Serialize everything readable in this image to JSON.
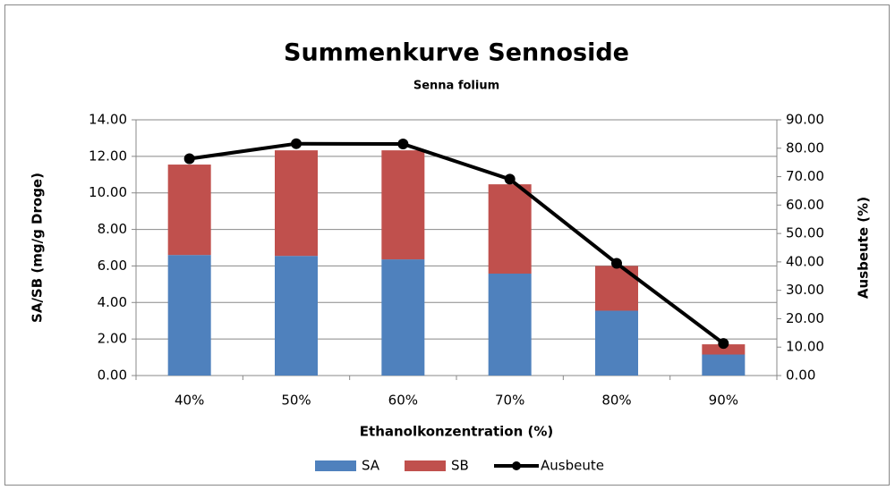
{
  "chart_data": {
    "type": "bar-line",
    "title": "Summenkurve Sennoside",
    "subtitle": "Senna folium",
    "x_label": "Ethanolkonzentration  (%)",
    "y_label": "SA/SB (mg/g Droge)",
    "y2_label": "Ausbeute (%)",
    "categories": [
      "40%",
      "50%",
      "60%",
      "70%",
      "80%",
      "90%"
    ],
    "series": [
      {
        "name": "SA",
        "color": "#4f81bd",
        "kind": "bar",
        "values": [
          6.6,
          6.55,
          6.36,
          5.58,
          3.55,
          1.15
        ]
      },
      {
        "name": "SB",
        "color": "#c0504d",
        "kind": "bar",
        "values": [
          4.95,
          5.78,
          5.97,
          4.89,
          2.45,
          0.56
        ]
      },
      {
        "name": "Ausbeute",
        "color": "#000000",
        "kind": "line",
        "axis": "y2",
        "values": [
          76.3,
          81.6,
          81.5,
          69.1,
          39.5,
          11.3
        ]
      }
    ],
    "ylim": [
      0,
      14
    ],
    "yticks": [
      {
        "value": 0,
        "label": "0.00"
      },
      {
        "value": 2,
        "label": "2.00"
      },
      {
        "value": 4,
        "label": "4.00"
      },
      {
        "value": 6,
        "label": "6.00"
      },
      {
        "value": 8,
        "label": "8.00"
      },
      {
        "value": 10,
        "label": "10.00"
      },
      {
        "value": 12,
        "label": "12.00"
      },
      {
        "value": 14,
        "label": "14.00"
      }
    ],
    "y2lim": [
      0,
      90
    ],
    "y2ticks": [
      {
        "value": 0,
        "label": "0.00"
      },
      {
        "value": 10,
        "label": "10.00"
      },
      {
        "value": 20,
        "label": "20.00"
      },
      {
        "value": 30,
        "label": "30.00"
      },
      {
        "value": 40,
        "label": "40.00"
      },
      {
        "value": 50,
        "label": "50.00"
      },
      {
        "value": 60,
        "label": "60.00"
      },
      {
        "value": 70,
        "label": "70.00"
      },
      {
        "value": 80,
        "label": "80.00"
      },
      {
        "value": 90,
        "label": "90.00"
      }
    ],
    "grid": true,
    "stacked": true,
    "legend": "bottom"
  }
}
